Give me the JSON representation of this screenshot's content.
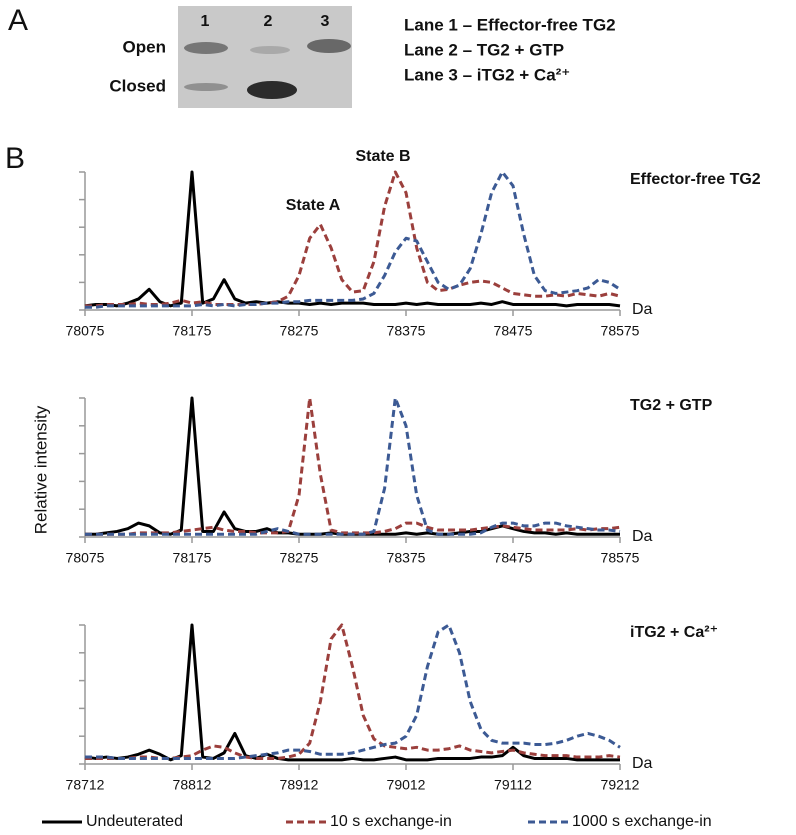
{
  "panel_a": {
    "label": "A",
    "lanes": [
      "1",
      "2",
      "3"
    ],
    "bands": [
      "Open",
      "Closed"
    ],
    "lane_legend": [
      "Lane 1 – Effector-free TG2",
      "Lane 2 – TG2 + GTP",
      "Lane 3 – iTG2 + Ca²⁺"
    ]
  },
  "panel_b": {
    "label": "B",
    "ylabel": "Relative intensity"
  },
  "chart_data": [
    {
      "type": "line",
      "title": "Effector-free TG2",
      "xlabel": "Da",
      "annotations": [
        "State A",
        "State B"
      ],
      "x": [
        78075,
        78085,
        78095,
        78105,
        78115,
        78125,
        78135,
        78145,
        78155,
        78165,
        78175,
        78185,
        78195,
        78205,
        78215,
        78225,
        78235,
        78245,
        78255,
        78265,
        78275,
        78285,
        78295,
        78305,
        78315,
        78325,
        78335,
        78345,
        78355,
        78365,
        78375,
        78385,
        78395,
        78405,
        78415,
        78425,
        78435,
        78445,
        78455,
        78465,
        78475,
        78485,
        78495,
        78505,
        78515,
        78525,
        78535,
        78545,
        78555,
        78565,
        78575
      ],
      "xlim": [
        78075,
        78575
      ],
      "xticks": [
        78075,
        78175,
        78275,
        78375,
        78475,
        78575
      ],
      "ylim": [
        0,
        1
      ],
      "yticks": [
        0,
        0.2,
        0.4,
        0.6,
        0.8,
        1
      ],
      "ytick_labels": false,
      "series": [
        {
          "name": "Undeuterated",
          "color": "#000000",
          "dashed": false,
          "values": [
            0.03,
            0.04,
            0.04,
            0.03,
            0.05,
            0.08,
            0.15,
            0.06,
            0.03,
            0.05,
            1.0,
            0.05,
            0.08,
            0.22,
            0.08,
            0.05,
            0.06,
            0.05,
            0.06,
            0.05,
            0.05,
            0.04,
            0.05,
            0.04,
            0.05,
            0.05,
            0.05,
            0.04,
            0.04,
            0.04,
            0.05,
            0.04,
            0.05,
            0.04,
            0.04,
            0.04,
            0.04,
            0.05,
            0.04,
            0.06,
            0.04,
            0.04,
            0.04,
            0.04,
            0.04,
            0.03,
            0.04,
            0.04,
            0.04,
            0.04,
            0.03
          ]
        },
        {
          "name": "10 s exchange-in",
          "color": "#9b3f3c",
          "dashed": true,
          "values": [
            0.03,
            0.03,
            0.04,
            0.04,
            0.04,
            0.05,
            0.04,
            0.04,
            0.05,
            0.07,
            0.05,
            0.06,
            0.04,
            0.04,
            0.04,
            0.04,
            0.04,
            0.05,
            0.06,
            0.1,
            0.25,
            0.52,
            0.62,
            0.45,
            0.22,
            0.13,
            0.14,
            0.35,
            0.75,
            1.0,
            0.85,
            0.45,
            0.2,
            0.14,
            0.15,
            0.18,
            0.2,
            0.21,
            0.2,
            0.16,
            0.12,
            0.11,
            0.1,
            0.1,
            0.11,
            0.1,
            0.12,
            0.11,
            0.1,
            0.12,
            0.1
          ]
        },
        {
          "name": "1000 s exchange-in",
          "color": "#3c5a94",
          "dashed": true,
          "values": [
            0.02,
            0.02,
            0.03,
            0.03,
            0.03,
            0.03,
            0.03,
            0.03,
            0.03,
            0.03,
            0.03,
            0.04,
            0.03,
            0.04,
            0.03,
            0.04,
            0.04,
            0.05,
            0.05,
            0.06,
            0.06,
            0.07,
            0.07,
            0.07,
            0.07,
            0.07,
            0.08,
            0.12,
            0.25,
            0.42,
            0.52,
            0.5,
            0.35,
            0.2,
            0.15,
            0.18,
            0.3,
            0.55,
            0.85,
            1.0,
            0.9,
            0.55,
            0.25,
            0.14,
            0.12,
            0.13,
            0.14,
            0.16,
            0.22,
            0.2,
            0.15
          ]
        }
      ]
    },
    {
      "type": "line",
      "title": "TG2 + GTP",
      "xlabel": "Da",
      "x": [
        78075,
        78085,
        78095,
        78105,
        78115,
        78125,
        78135,
        78145,
        78155,
        78165,
        78175,
        78185,
        78195,
        78205,
        78215,
        78225,
        78235,
        78245,
        78255,
        78265,
        78275,
        78285,
        78295,
        78305,
        78315,
        78325,
        78335,
        78345,
        78355,
        78365,
        78375,
        78385,
        78395,
        78405,
        78415,
        78425,
        78435,
        78445,
        78455,
        78465,
        78475,
        78485,
        78495,
        78505,
        78515,
        78525,
        78535,
        78545,
        78555,
        78565,
        78575
      ],
      "xlim": [
        78075,
        78575
      ],
      "xticks": [
        78075,
        78175,
        78275,
        78375,
        78475,
        78575
      ],
      "ylim": [
        0,
        1
      ],
      "yticks": [
        0,
        0.2,
        0.4,
        0.6,
        0.8,
        1
      ],
      "ytick_labels": false,
      "series": [
        {
          "name": "Undeuterated",
          "color": "#000000",
          "dashed": false,
          "values": [
            0.02,
            0.02,
            0.03,
            0.04,
            0.06,
            0.1,
            0.08,
            0.03,
            0.02,
            0.05,
            1.0,
            0.04,
            0.04,
            0.18,
            0.06,
            0.04,
            0.04,
            0.06,
            0.03,
            0.03,
            0.02,
            0.02,
            0.02,
            0.03,
            0.02,
            0.02,
            0.02,
            0.02,
            0.02,
            0.02,
            0.03,
            0.02,
            0.03,
            0.02,
            0.02,
            0.03,
            0.04,
            0.04,
            0.06,
            0.08,
            0.06,
            0.04,
            0.03,
            0.03,
            0.02,
            0.03,
            0.02,
            0.02,
            0.02,
            0.02,
            0.02
          ]
        },
        {
          "name": "10 s exchange-in",
          "color": "#9b3f3c",
          "dashed": true,
          "values": [
            0.02,
            0.02,
            0.02,
            0.02,
            0.02,
            0.03,
            0.03,
            0.03,
            0.03,
            0.04,
            0.05,
            0.06,
            0.07,
            0.05,
            0.04,
            0.04,
            0.03,
            0.03,
            0.03,
            0.04,
            0.3,
            1.0,
            0.45,
            0.05,
            0.03,
            0.03,
            0.03,
            0.03,
            0.04,
            0.06,
            0.1,
            0.1,
            0.07,
            0.05,
            0.05,
            0.05,
            0.05,
            0.06,
            0.07,
            0.08,
            0.07,
            0.06,
            0.05,
            0.05,
            0.05,
            0.05,
            0.06,
            0.05,
            0.06,
            0.06,
            0.07
          ]
        },
        {
          "name": "1000 s exchange-in",
          "color": "#3c5a94",
          "dashed": true,
          "values": [
            0.02,
            0.02,
            0.02,
            0.02,
            0.02,
            0.02,
            0.02,
            0.02,
            0.02,
            0.02,
            0.02,
            0.02,
            0.02,
            0.02,
            0.02,
            0.02,
            0.02,
            0.04,
            0.06,
            0.04,
            0.02,
            0.02,
            0.02,
            0.02,
            0.02,
            0.02,
            0.02,
            0.04,
            0.35,
            1.0,
            0.8,
            0.3,
            0.05,
            0.02,
            0.02,
            0.02,
            0.02,
            0.03,
            0.07,
            0.1,
            0.1,
            0.08,
            0.08,
            0.1,
            0.1,
            0.08,
            0.07,
            0.06,
            0.05,
            0.05,
            0.04
          ]
        }
      ]
    },
    {
      "type": "line",
      "title": "iTG2 + Ca²⁺",
      "xlabel": "Da",
      "x": [
        78712,
        78722,
        78732,
        78742,
        78752,
        78762,
        78772,
        78782,
        78792,
        78802,
        78812,
        78822,
        78832,
        78842,
        78852,
        78862,
        78872,
        78882,
        78892,
        78902,
        78912,
        78922,
        78932,
        78942,
        78952,
        78962,
        78972,
        78982,
        78992,
        79002,
        79012,
        79022,
        79032,
        79042,
        79052,
        79062,
        79072,
        79082,
        79092,
        79102,
        79112,
        79122,
        79132,
        79142,
        79152,
        79162,
        79172,
        79182,
        79192,
        79202,
        79212
      ],
      "xlim": [
        78712,
        79212
      ],
      "xticks": [
        78712,
        78812,
        78912,
        79012,
        79112,
        79212
      ],
      "ylim": [
        0,
        1
      ],
      "yticks": [
        0,
        0.2,
        0.4,
        0.6,
        0.8,
        1
      ],
      "ytick_labels": false,
      "series": [
        {
          "name": "Undeuterated",
          "color": "#000000",
          "dashed": false,
          "values": [
            0.05,
            0.04,
            0.05,
            0.04,
            0.05,
            0.07,
            0.1,
            0.07,
            0.03,
            0.06,
            1.0,
            0.05,
            0.04,
            0.08,
            0.22,
            0.06,
            0.04,
            0.07,
            0.04,
            0.03,
            0.03,
            0.03,
            0.03,
            0.03,
            0.03,
            0.04,
            0.03,
            0.03,
            0.04,
            0.05,
            0.03,
            0.03,
            0.03,
            0.04,
            0.04,
            0.04,
            0.04,
            0.05,
            0.05,
            0.06,
            0.12,
            0.06,
            0.04,
            0.04,
            0.04,
            0.04,
            0.03,
            0.03,
            0.03,
            0.03,
            0.03
          ]
        },
        {
          "name": "10 s exchange-in",
          "color": "#9b3f3c",
          "dashed": true,
          "values": [
            0.04,
            0.04,
            0.04,
            0.04,
            0.04,
            0.05,
            0.05,
            0.04,
            0.04,
            0.05,
            0.06,
            0.1,
            0.13,
            0.12,
            0.08,
            0.05,
            0.04,
            0.04,
            0.04,
            0.05,
            0.07,
            0.15,
            0.45,
            0.9,
            1.0,
            0.7,
            0.35,
            0.18,
            0.13,
            0.12,
            0.11,
            0.12,
            0.1,
            0.1,
            0.11,
            0.13,
            0.1,
            0.09,
            0.08,
            0.09,
            0.1,
            0.08,
            0.07,
            0.06,
            0.06,
            0.06,
            0.05,
            0.05,
            0.05,
            0.06,
            0.05
          ]
        },
        {
          "name": "1000 s exchange-in",
          "color": "#3c5a94",
          "dashed": true,
          "values": [
            0.05,
            0.05,
            0.05,
            0.04,
            0.04,
            0.04,
            0.04,
            0.04,
            0.04,
            0.04,
            0.04,
            0.04,
            0.04,
            0.04,
            0.04,
            0.05,
            0.06,
            0.07,
            0.08,
            0.1,
            0.1,
            0.09,
            0.07,
            0.07,
            0.07,
            0.08,
            0.1,
            0.12,
            0.14,
            0.15,
            0.2,
            0.35,
            0.7,
            0.95,
            1.0,
            0.8,
            0.45,
            0.25,
            0.17,
            0.15,
            0.15,
            0.15,
            0.14,
            0.14,
            0.15,
            0.17,
            0.2,
            0.22,
            0.2,
            0.17,
            0.12
          ]
        }
      ]
    }
  ]
}
